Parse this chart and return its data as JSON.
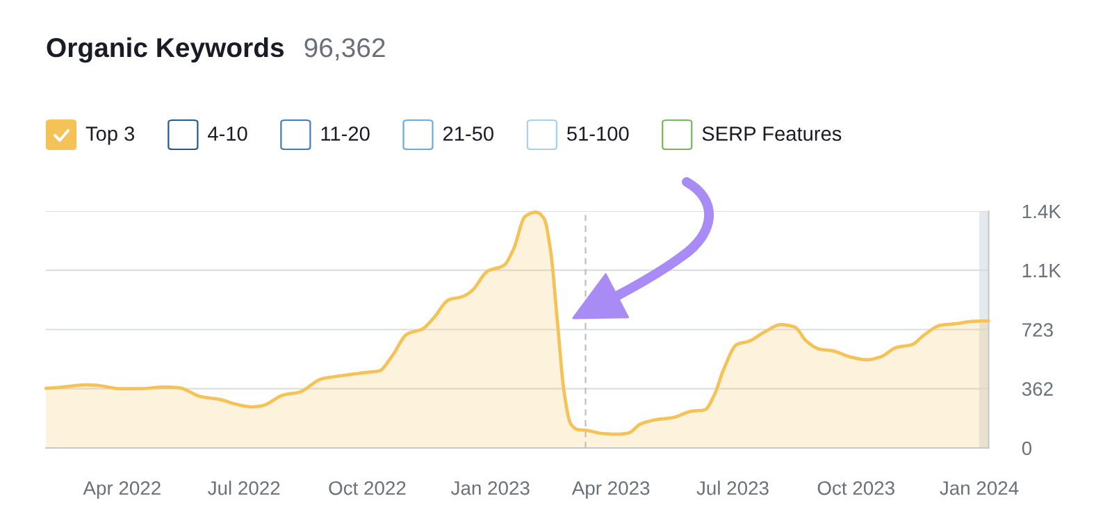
{
  "chart_data": {
    "type": "area",
    "title": "Organic Keywords",
    "subtitle": "96,362",
    "x": [
      "2022-02-03",
      "2022-02-13",
      "2022-03-05",
      "2022-03-12",
      "2022-03-31",
      "2022-04-14",
      "2022-05-03",
      "2022-05-13",
      "2022-05-30",
      "2022-06-13",
      "2022-06-25",
      "2022-07-07",
      "2022-07-14",
      "2022-07-31",
      "2022-08-11",
      "2022-08-28",
      "2022-09-09",
      "2022-09-30",
      "2022-10-10",
      "2022-10-19",
      "2022-10-31",
      "2022-11-11",
      "2022-11-19",
      "2022-12-01",
      "2022-12-11",
      "2022-12-18",
      "2022-12-30",
      "2023-01-11",
      "2023-01-18",
      "2023-01-27",
      "2023-02-04",
      "2023-02-10",
      "2023-02-15",
      "2023-02-20",
      "2023-02-25",
      "2023-03-02",
      "2023-03-07",
      "2023-03-14",
      "2023-03-26",
      "2023-04-06",
      "2023-04-14",
      "2023-04-23",
      "2023-05-05",
      "2023-05-17",
      "2023-05-31",
      "2023-06-10",
      "2023-06-17",
      "2023-06-24",
      "2023-07-04",
      "2023-07-13",
      "2023-07-25",
      "2023-08-06",
      "2023-08-16",
      "2023-08-25",
      "2023-09-04",
      "2023-09-13",
      "2023-09-27",
      "2023-10-09",
      "2023-10-19",
      "2023-10-31",
      "2023-11-12",
      "2023-11-21",
      "2023-12-03",
      "2023-12-15",
      "2023-12-27",
      "2024-01-08"
    ],
    "series": [
      {
        "name": "Top 3",
        "color": "#f4c257",
        "values": [
          364,
          370,
          385,
          383,
          362,
          362,
          372,
          368,
          313,
          296,
          267,
          251,
          257,
          325,
          340,
          422,
          438,
          461,
          471,
          555,
          697,
          726,
          788,
          905,
          924,
          959,
          1080,
          1115,
          1210,
          1415,
          1440,
          1401,
          1197,
          769,
          341,
          146,
          113,
          107,
          88,
          84,
          91,
          146,
          173,
          185,
          224,
          233,
          321,
          477,
          632,
          652,
          710,
          753,
          739,
          652,
          603,
          594,
          555,
          539,
          555,
          613,
          632,
          691,
          749,
          759,
          773,
          776
        ]
      },
      {
        "name": "4-10",
        "color": "#1e5b9a",
        "values": [
          null,
          null,
          null,
          null,
          null,
          null,
          null,
          null,
          null,
          null,
          null,
          null,
          null,
          null,
          null,
          null,
          null,
          null,
          null,
          null,
          null,
          null,
          null,
          null,
          null,
          null,
          null,
          null,
          null,
          null,
          null,
          null,
          null,
          null,
          null,
          null,
          null,
          null,
          null,
          null,
          null,
          null,
          null,
          null,
          null,
          null,
          null,
          null,
          null,
          null,
          null,
          null,
          null,
          null,
          null,
          null,
          null,
          null,
          null,
          null,
          null,
          null,
          null,
          null,
          null,
          null
        ]
      },
      {
        "name": "11-20",
        "color": "#3a7ec6",
        "values": [
          null,
          null,
          null,
          null,
          null,
          null,
          null,
          null,
          null,
          null,
          null,
          null,
          null,
          null,
          null,
          null,
          null,
          null,
          null,
          null,
          null,
          null,
          null,
          null,
          null,
          null,
          null,
          null,
          null,
          null,
          null,
          null,
          null,
          null,
          null,
          null,
          null,
          null,
          null,
          null,
          null,
          null,
          null,
          null,
          null,
          null,
          null,
          null,
          null,
          null,
          null,
          null,
          null,
          null,
          null,
          null,
          null,
          null,
          null,
          null,
          null,
          null,
          null,
          null,
          null,
          null
        ]
      },
      {
        "name": "21-50",
        "color": "#64ace2",
        "values": [
          null,
          null,
          null,
          null,
          null,
          null,
          null,
          null,
          null,
          null,
          null,
          null,
          null,
          null,
          null,
          null,
          null,
          null,
          null,
          null,
          null,
          null,
          null,
          null,
          null,
          null,
          null,
          null,
          null,
          null,
          null,
          null,
          null,
          null,
          null,
          null,
          null,
          null,
          null,
          null,
          null,
          null,
          null,
          null,
          null,
          null,
          null,
          null,
          null,
          null,
          null,
          null,
          null,
          null,
          null,
          null,
          null,
          null,
          null,
          null,
          null,
          null,
          null,
          null,
          null,
          null
        ]
      },
      {
        "name": "51-100",
        "color": "#a7d0ef",
        "values": [
          null,
          null,
          null,
          null,
          null,
          null,
          null,
          null,
          null,
          null,
          null,
          null,
          null,
          null,
          null,
          null,
          null,
          null,
          null,
          null,
          null,
          null,
          null,
          null,
          null,
          null,
          null,
          null,
          null,
          null,
          null,
          null,
          null,
          null,
          null,
          null,
          null,
          null,
          null,
          null,
          null,
          null,
          null,
          null,
          null,
          null,
          null,
          null,
          null,
          null,
          null,
          null,
          null,
          null,
          null,
          null,
          null,
          null,
          null,
          null,
          null,
          null,
          null,
          null,
          null,
          null
        ]
      },
      {
        "name": "SERP Features",
        "color": "#79b55a",
        "values": [
          null,
          null,
          null,
          null,
          null,
          null,
          null,
          null,
          null,
          null,
          null,
          null,
          null,
          null,
          null,
          null,
          null,
          null,
          null,
          null,
          null,
          null,
          null,
          null,
          null,
          null,
          null,
          null,
          null,
          null,
          null,
          null,
          null,
          null,
          null,
          null,
          null,
          null,
          null,
          null,
          null,
          null,
          null,
          null,
          null,
          null,
          null,
          null,
          null,
          null,
          null,
          null,
          null,
          null,
          null,
          null,
          null,
          null,
          null,
          null,
          null,
          null,
          null,
          null,
          null,
          null
        ]
      }
    ],
    "xlim": [
      "2022-02-03",
      "2024-01-08"
    ],
    "xticks": [
      {
        "value": "2022-04-01",
        "label": "Apr 2022"
      },
      {
        "value": "2022-07-01",
        "label": "Jul 2022"
      },
      {
        "value": "2022-10-01",
        "label": "Oct 2022"
      },
      {
        "value": "2023-01-01",
        "label": "Jan 2023"
      },
      {
        "value": "2023-04-01",
        "label": "Apr 2023"
      },
      {
        "value": "2023-07-01",
        "label": "Jul 2023"
      },
      {
        "value": "2023-10-01",
        "label": "Oct 2023"
      },
      {
        "value": "2024-01-01",
        "label": "Jan 2024"
      }
    ],
    "ylim": [
      0,
      1446
    ],
    "yticks": [
      0,
      362,
      723,
      {
        "value": 1085,
        "label": "1.1K"
      },
      {
        "value": 1446,
        "label": "1.4K"
      }
    ],
    "ref_lines": [
      {
        "axis": "x",
        "value": "2023-03-13",
        "color": "#bdbec4",
        "line_style": "dashed"
      }
    ],
    "bands": [
      {
        "axis": "x",
        "from": "2024-01-01",
        "to": "2024-01-08",
        "color": "#e4e9ed"
      }
    ],
    "grid": "y",
    "legend": "top left"
  }
}
